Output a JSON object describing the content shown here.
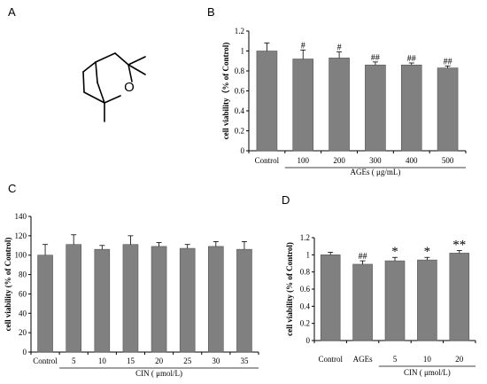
{
  "panels": {
    "A": {
      "letter": "A",
      "structure_atom_label": "O"
    },
    "B": {
      "letter": "B"
    },
    "C": {
      "letter": "C"
    },
    "D": {
      "letter": "D"
    }
  },
  "colors": {
    "bar": "#808080",
    "axis": "#000000",
    "error": "#000000"
  },
  "chart_data": [
    {
      "id": "B",
      "type": "bar",
      "ylabel": "cell viability（% of Control)",
      "ylim": [
        0,
        1.2
      ],
      "yticks": [
        0,
        0.2,
        0.4,
        0.6,
        0.8,
        1,
        1.2
      ],
      "ytick_labels": [
        "0",
        "0.2",
        "0.4",
        "0.6",
        "0.8",
        "1",
        "1.2"
      ],
      "categories": [
        "Control",
        "100",
        "200",
        "300",
        "400",
        "500"
      ],
      "values": [
        1.0,
        0.92,
        0.93,
        0.86,
        0.86,
        0.83
      ],
      "errors": [
        0.08,
        0.09,
        0.06,
        0.03,
        0.02,
        0.02
      ],
      "annotations": [
        "",
        "#",
        "#",
        "##",
        "##",
        "##"
      ],
      "group_label": "AGEs ( μg/mL)",
      "group_span": [
        1,
        5
      ],
      "grid": false
    },
    {
      "id": "C",
      "type": "bar",
      "ylabel": "cell viability (% of Control)",
      "ylim": [
        0,
        140
      ],
      "yticks": [
        0,
        20,
        40,
        60,
        80,
        100,
        120,
        140
      ],
      "ytick_labels": [
        "0",
        "20",
        "40",
        "60",
        "80",
        "100",
        "120",
        "140"
      ],
      "categories": [
        "Control",
        "5",
        "10",
        "15",
        "20",
        "25",
        "30",
        "35"
      ],
      "values": [
        100,
        111,
        106,
        111,
        109,
        107,
        109,
        106
      ],
      "errors": [
        11,
        10,
        4,
        9,
        4,
        4,
        5,
        8
      ],
      "annotations": [
        "",
        "",
        "",
        "",
        "",
        "",
        "",
        ""
      ],
      "group_label": "CIN ( μmol/L)",
      "group_span": [
        1,
        7
      ],
      "grid": false
    },
    {
      "id": "D",
      "type": "bar",
      "ylabel": "cell viability (% of Control)",
      "ylim": [
        0,
        1.2
      ],
      "yticks": [
        0,
        0.2,
        0.4,
        0.6,
        0.8,
        1,
        1.2
      ],
      "ytick_labels": [
        "0",
        "0.2",
        "0.4",
        "0.6",
        "0.8",
        "1",
        "1.2"
      ],
      "categories": [
        "Control",
        "AGEs",
        "5",
        "10",
        "20"
      ],
      "values": [
        1.0,
        0.89,
        0.93,
        0.94,
        1.02
      ],
      "errors": [
        0.03,
        0.04,
        0.04,
        0.03,
        0.03
      ],
      "annotations": [
        "",
        "##",
        "*",
        "*",
        "**"
      ],
      "group_label": "CIN ( μmol/L)",
      "group_span": [
        2,
        4
      ],
      "grid": false
    }
  ]
}
